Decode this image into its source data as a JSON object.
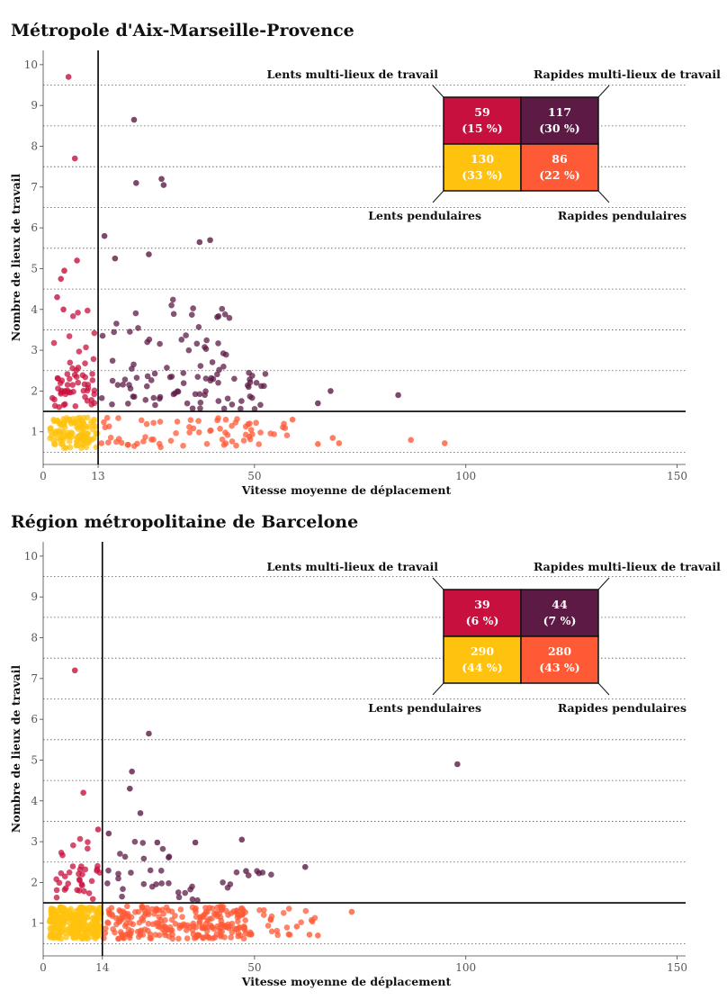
{
  "chart_data": [
    {
      "type": "scatter",
      "title": "Métropole d'Aix-Marseille-Provence",
      "xlabel": "Vitesse moyenne de déplacement",
      "ylabel": "Nombre de lieux de travail",
      "xlim": [
        0,
        152
      ],
      "ylim": [
        0.2,
        10.35
      ],
      "x_ticks": [
        "0",
        "13",
        "50",
        "100",
        "150"
      ],
      "x_tick_values": [
        0,
        13,
        50,
        100,
        150
      ],
      "y_ticks": [
        "1",
        "2",
        "3",
        "4",
        "5",
        "6",
        "7",
        "8",
        "9",
        "10"
      ],
      "y_gridlines": [
        0.5,
        1.5,
        2.5,
        3.5,
        4.5,
        5.5,
        6.5,
        7.5,
        8.5,
        9.5
      ],
      "speed_threshold": 13,
      "workplace_threshold": 1.5,
      "colors": {
        "slow_multi": "#C8103E",
        "fast_multi": "#5C1A45",
        "slow_commuter": "#FFC20E",
        "fast_commuter": "#FF5A36"
      },
      "quadrants": {
        "slow_multi": {
          "label": "Lents multi-lieux de travail",
          "count": "59",
          "pct": "(15 %)"
        },
        "fast_multi": {
          "label": "Rapides multi-lieux de travail",
          "count": "117",
          "pct": "(30 %)"
        },
        "slow_commuter": {
          "label": "Lents pendulaires",
          "count": "130",
          "pct": "(33 %)"
        },
        "fast_commuter": {
          "label": "Rapides pendulaires",
          "count": "86",
          "pct": "(22 %)"
        }
      },
      "outliers": [
        [
          6,
          9.7
        ],
        [
          7.5,
          7.7
        ],
        [
          21.5,
          8.65
        ],
        [
          22,
          7.1
        ],
        [
          28,
          7.2
        ],
        [
          28.5,
          7.05
        ],
        [
          14.5,
          5.8
        ],
        [
          17,
          5.25
        ],
        [
          25,
          5.35
        ],
        [
          37,
          5.65
        ],
        [
          39.5,
          5.7
        ],
        [
          8,
          5.2
        ],
        [
          5,
          4.95
        ],
        [
          4.2,
          4.75
        ],
        [
          3.3,
          4.3
        ],
        [
          4.8,
          4.0
        ],
        [
          84,
          1.9
        ],
        [
          68,
          2.0
        ],
        [
          65,
          1.7
        ],
        [
          95,
          0.72
        ],
        [
          87,
          0.8
        ],
        [
          70,
          0.72
        ],
        [
          68.5,
          0.85
        ],
        [
          65,
          0.7
        ],
        [
          59,
          1.3
        ]
      ]
    },
    {
      "type": "scatter",
      "title": "Région métropolitaine de Barcelone",
      "xlabel": "Vitesse moyenne de déplacement",
      "ylabel": "Nombre de lieux de travail",
      "xlim": [
        0,
        152
      ],
      "ylim": [
        0.2,
        10.35
      ],
      "x_ticks": [
        "0",
        "14",
        "50",
        "100",
        "150"
      ],
      "x_tick_values": [
        0,
        14,
        50,
        100,
        150
      ],
      "y_ticks": [
        "1",
        "2",
        "3",
        "4",
        "5",
        "6",
        "7",
        "8",
        "9",
        "10"
      ],
      "y_gridlines": [
        0.5,
        1.5,
        2.5,
        3.5,
        4.5,
        5.5,
        6.5,
        7.5,
        8.5,
        9.5
      ],
      "speed_threshold": 14,
      "workplace_threshold": 1.5,
      "colors": {
        "slow_multi": "#C8103E",
        "fast_multi": "#5C1A45",
        "slow_commuter": "#FFC20E",
        "fast_commuter": "#FF5A36"
      },
      "quadrants": {
        "slow_multi": {
          "label": "Lents multi-lieux de travail",
          "count": "39",
          "pct": "(6 %)"
        },
        "fast_multi": {
          "label": "Rapides multi-lieux de travail",
          "count": "44",
          "pct": "(7 %)"
        },
        "slow_commuter": {
          "label": "Lents pendulaires",
          "count": "290",
          "pct": "(44 %)"
        },
        "fast_commuter": {
          "label": "Rapides pendulaires",
          "count": "280",
          "pct": "(43 %)"
        }
      },
      "outliers": [
        [
          7.5,
          7.2
        ],
        [
          25,
          5.65
        ],
        [
          21,
          4.72
        ],
        [
          98,
          4.9
        ],
        [
          20.5,
          4.3
        ],
        [
          23,
          3.7
        ],
        [
          9.5,
          4.2
        ],
        [
          13,
          3.3
        ],
        [
          15.5,
          3.2
        ],
        [
          27,
          2.98
        ],
        [
          36,
          2.98
        ],
        [
          47,
          3.05
        ],
        [
          62,
          2.38
        ],
        [
          48,
          2.28
        ],
        [
          73,
          1.28
        ],
        [
          65,
          0.7
        ],
        [
          63,
          0.72
        ],
        [
          60,
          0.92
        ]
      ]
    }
  ]
}
